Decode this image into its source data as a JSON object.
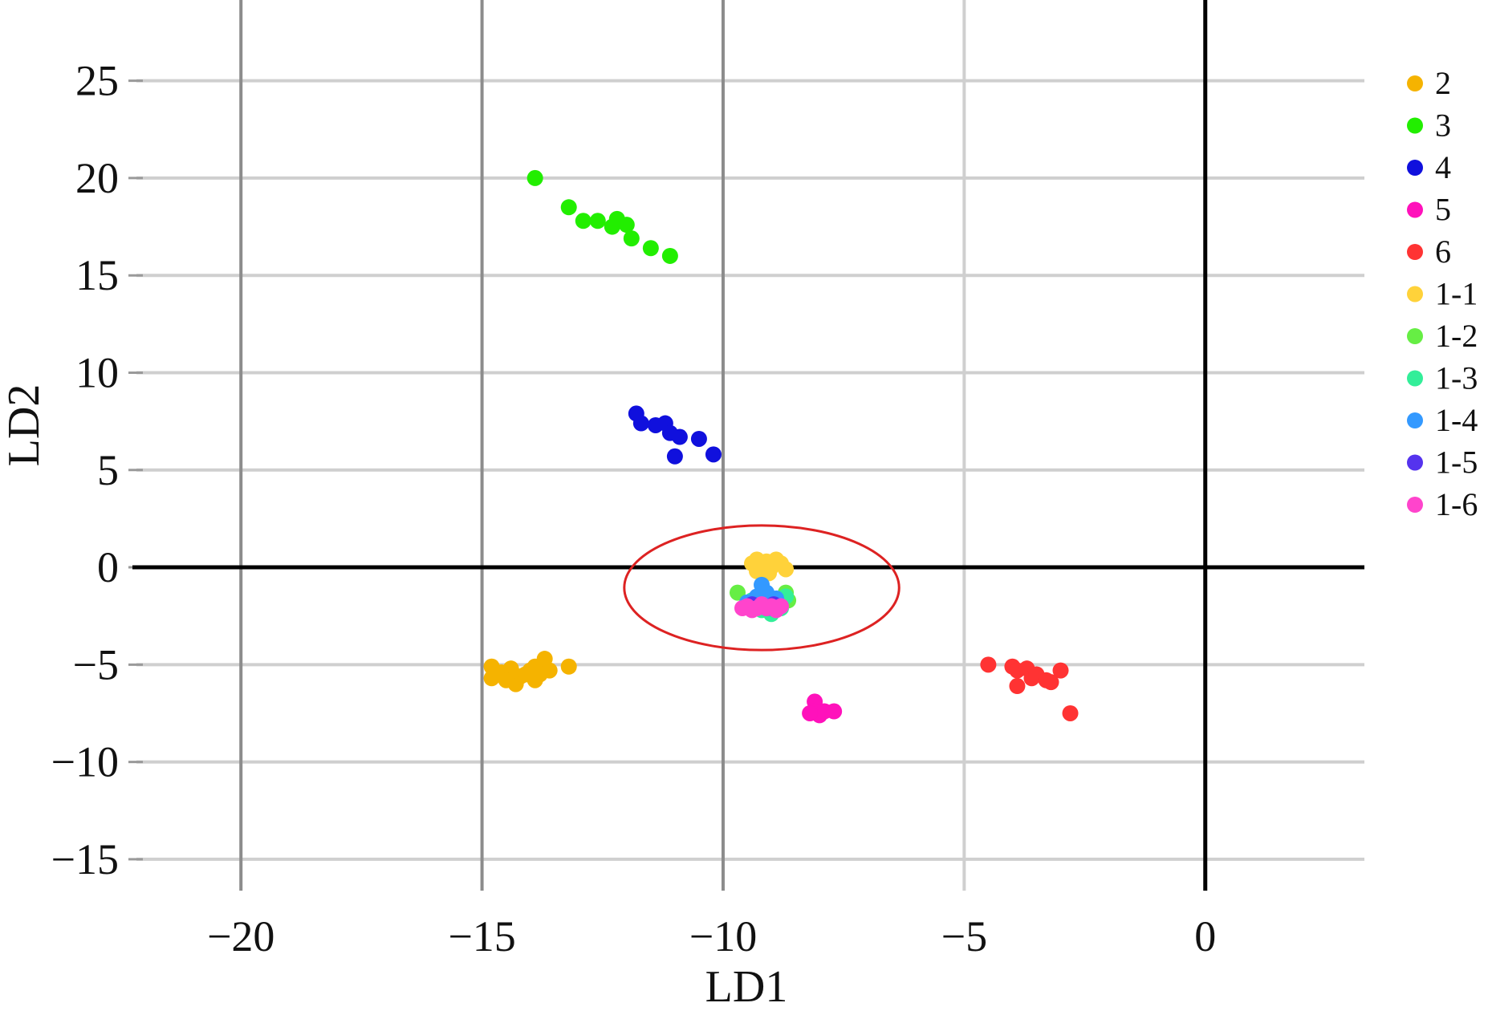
{
  "chart_data": {
    "type": "scatter",
    "title": "",
    "xlabel": "LD1",
    "ylabel": "LD2",
    "xlim": [
      -22.5,
      3.3
    ],
    "ylim": [
      -16.2,
      27.5
    ],
    "xticks": [
      -20,
      -15,
      -10,
      -5,
      0
    ],
    "yticks": [
      25,
      20,
      15,
      10,
      5,
      0,
      -5,
      -10,
      -15
    ],
    "xtick_labels": [
      "−20",
      "−15",
      "−10",
      "−5",
      "0"
    ],
    "ytick_labels": [
      "25",
      "20",
      "15",
      "10",
      "5",
      "0",
      "−5",
      "−10",
      "−15"
    ],
    "grid": true,
    "legend_position": "right",
    "annotation": {
      "shape": "ellipse",
      "color": "#dd2222",
      "cx": -9.2,
      "cy": -1.05,
      "rx": 2.85,
      "ry": 3.2
    },
    "series": [
      {
        "name": "2",
        "color": "#f5b300",
        "points": [
          [
            -14.8,
            -5.1
          ],
          [
            -14.8,
            -5.7
          ],
          [
            -14.6,
            -5.4
          ],
          [
            -14.4,
            -5.2
          ],
          [
            -14.3,
            -6.0
          ],
          [
            -14.2,
            -5.6
          ],
          [
            -14.0,
            -5.3
          ],
          [
            -13.9,
            -5.1
          ],
          [
            -13.9,
            -5.8
          ],
          [
            -13.8,
            -5.5
          ],
          [
            -13.7,
            -4.7
          ],
          [
            -13.6,
            -5.3
          ],
          [
            -13.2,
            -5.1
          ],
          [
            -14.1,
            -5.5
          ],
          [
            -14.5,
            -5.8
          ]
        ]
      },
      {
        "name": "3",
        "color": "#22ee00",
        "points": [
          [
            -13.9,
            20.0
          ],
          [
            -13.2,
            18.5
          ],
          [
            -12.9,
            17.8
          ],
          [
            -12.6,
            17.8
          ],
          [
            -12.3,
            17.5
          ],
          [
            -12.2,
            17.9
          ],
          [
            -12.0,
            17.6
          ],
          [
            -11.9,
            16.9
          ],
          [
            -11.5,
            16.4
          ],
          [
            -11.1,
            16.0
          ]
        ]
      },
      {
        "name": "4",
        "color": "#1010dd",
        "points": [
          [
            -11.8,
            7.9
          ],
          [
            -11.7,
            7.4
          ],
          [
            -11.4,
            7.3
          ],
          [
            -11.2,
            7.4
          ],
          [
            -11.1,
            6.9
          ],
          [
            -10.9,
            6.7
          ],
          [
            -11.0,
            5.7
          ],
          [
            -10.5,
            6.6
          ],
          [
            -10.2,
            5.8
          ]
        ]
      },
      {
        "name": "5",
        "color": "#ff11bb",
        "points": [
          [
            -8.1,
            -6.9
          ],
          [
            -8.1,
            -7.4
          ],
          [
            -8.0,
            -7.6
          ],
          [
            -7.9,
            -7.4
          ],
          [
            -7.7,
            -7.4
          ],
          [
            -8.2,
            -7.5
          ]
        ]
      },
      {
        "name": "6",
        "color": "#ff3333",
        "points": [
          [
            -4.5,
            -5.0
          ],
          [
            -4.0,
            -5.1
          ],
          [
            -3.9,
            -5.3
          ],
          [
            -3.9,
            -6.1
          ],
          [
            -3.7,
            -5.2
          ],
          [
            -3.6,
            -5.7
          ],
          [
            -3.5,
            -5.5
          ],
          [
            -3.3,
            -5.8
          ],
          [
            -3.2,
            -5.9
          ],
          [
            -3.0,
            -5.3
          ],
          [
            -2.8,
            -7.5
          ]
        ]
      },
      {
        "name": "1-1",
        "color": "#ffd23a",
        "points": [
          [
            -9.4,
            0.2
          ],
          [
            -9.3,
            0.4
          ],
          [
            -9.2,
            0.1
          ],
          [
            -9.1,
            0.3
          ],
          [
            -9.0,
            0.0
          ],
          [
            -8.9,
            0.4
          ],
          [
            -8.8,
            0.2
          ],
          [
            -8.7,
            -0.1
          ],
          [
            -9.3,
            -0.2
          ],
          [
            -9.05,
            -0.3
          ]
        ]
      },
      {
        "name": "1-2",
        "color": "#66ee44",
        "points": [
          [
            -9.7,
            -1.3
          ],
          [
            -9.5,
            -1.9
          ],
          [
            -9.3,
            -2.0
          ],
          [
            -8.9,
            -2.0
          ],
          [
            -8.7,
            -1.3
          ],
          [
            -8.65,
            -1.7
          ]
        ]
      },
      {
        "name": "1-3",
        "color": "#33ee99",
        "points": [
          [
            -9.2,
            -2.2
          ],
          [
            -9.0,
            -2.4
          ],
          [
            -8.8,
            -2.1
          ],
          [
            -8.7,
            -1.5
          ],
          [
            -9.4,
            -1.7
          ]
        ]
      },
      {
        "name": "1-4",
        "color": "#3399ff",
        "points": [
          [
            -9.2,
            -0.9
          ],
          [
            -9.3,
            -1.5
          ],
          [
            -9.1,
            -1.3
          ],
          [
            -8.9,
            -1.6
          ],
          [
            -9.5,
            -1.8
          ],
          [
            -9.0,
            -2.1
          ]
        ]
      },
      {
        "name": "1-5",
        "color": "#5533ee",
        "points": [
          [
            -9.4,
            -1.9
          ],
          [
            -9.1,
            -2.1
          ],
          [
            -8.95,
            -1.9
          ]
        ]
      },
      {
        "name": "1-6",
        "color": "#ff44cc",
        "points": [
          [
            -9.5,
            -2.0
          ],
          [
            -9.4,
            -2.2
          ],
          [
            -9.3,
            -2.1
          ],
          [
            -9.2,
            -1.9
          ],
          [
            -9.1,
            -2.1
          ],
          [
            -9.0,
            -2.0
          ],
          [
            -8.9,
            -2.2
          ],
          [
            -8.8,
            -2.0
          ],
          [
            -9.6,
            -2.1
          ]
        ]
      }
    ]
  }
}
